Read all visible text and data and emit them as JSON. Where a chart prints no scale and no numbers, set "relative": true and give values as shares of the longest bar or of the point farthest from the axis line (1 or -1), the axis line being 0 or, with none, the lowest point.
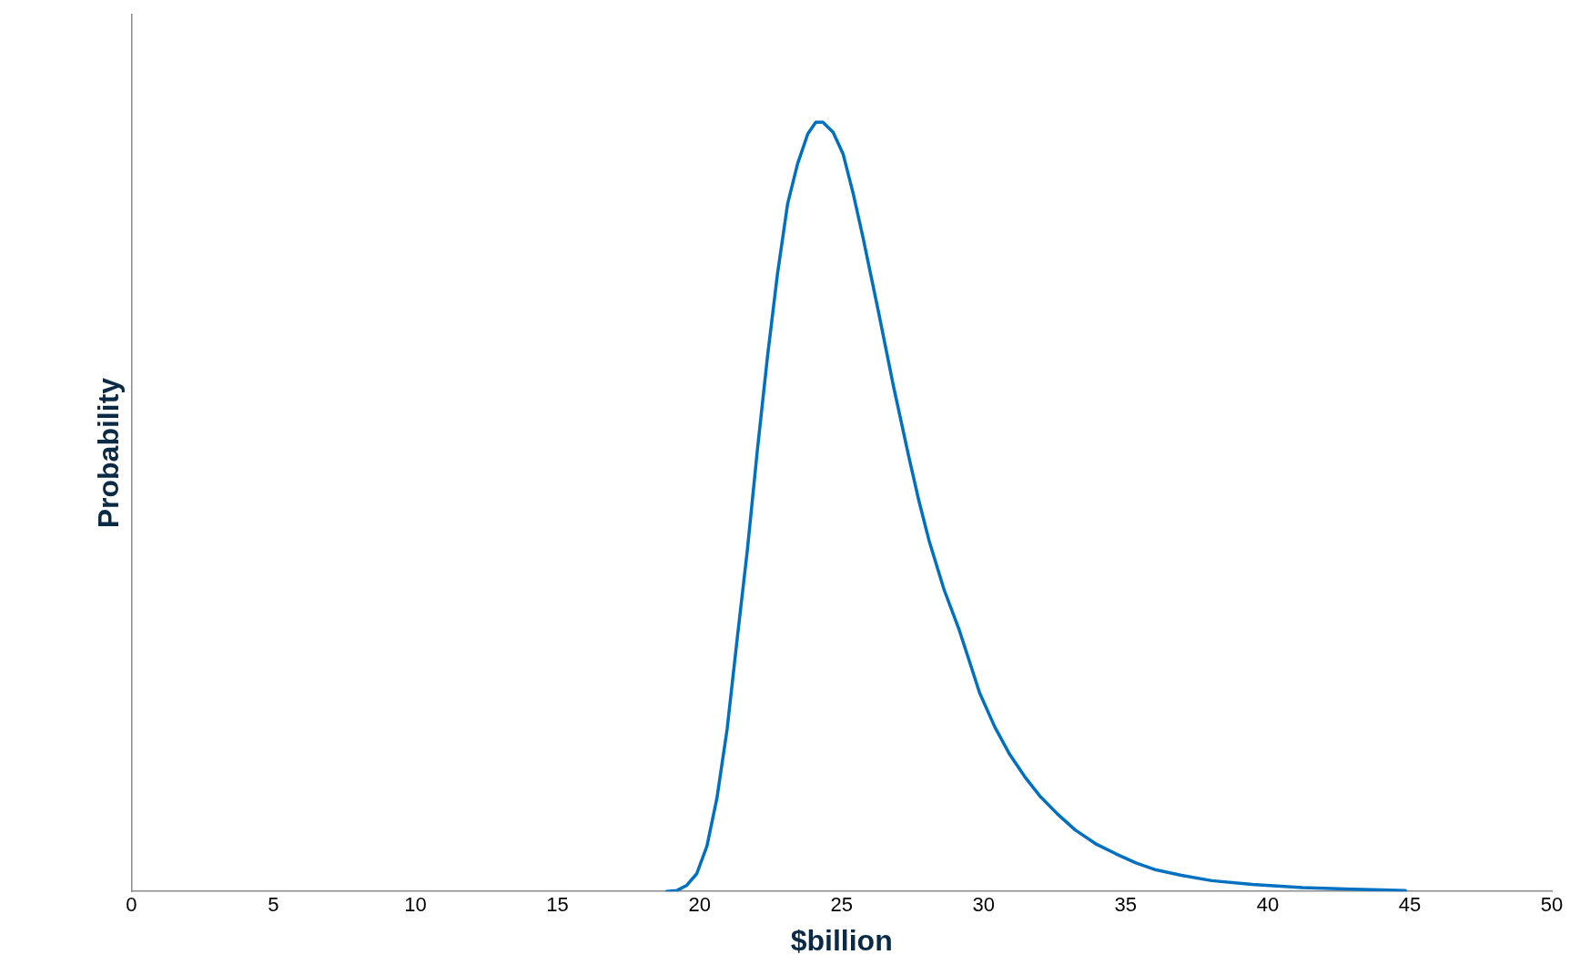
{
  "chart_data": {
    "type": "line",
    "xlabel": "$billion",
    "ylabel": "Probability",
    "relative": true,
    "xlim": [
      0,
      50
    ],
    "xticks": [
      0,
      5,
      10,
      15,
      20,
      25,
      30,
      35,
      40,
      45,
      50
    ],
    "grid": false,
    "legend": false,
    "marker": "none",
    "line_style": "solid",
    "series": [
      {
        "color": "#0070c0",
        "x": [
          18.84,
          19.19,
          19.55,
          19.9,
          20.26,
          20.61,
          20.97,
          21.32,
          21.68,
          22.03,
          22.39,
          22.74,
          23.1,
          23.45,
          23.81,
          24.09,
          24.34,
          24.7,
          25.05,
          25.41,
          25.76,
          26.3,
          26.83,
          27.36,
          27.72,
          28.08,
          28.61,
          29.14,
          29.5,
          29.86,
          30.39,
          30.92,
          31.45,
          31.98,
          32.59,
          33.22,
          33.94,
          34.65,
          35.36,
          36.07,
          36.96,
          38.03,
          39.45,
          41.22,
          43.0,
          44.85
        ],
        "values": [
          0,
          0.001,
          0.008,
          0.023,
          0.059,
          0.121,
          0.211,
          0.327,
          0.443,
          0.572,
          0.695,
          0.802,
          0.894,
          0.946,
          0.985,
          1,
          1,
          0.987,
          0.959,
          0.907,
          0.849,
          0.753,
          0.656,
          0.566,
          0.508,
          0.456,
          0.392,
          0.34,
          0.299,
          0.258,
          0.214,
          0.178,
          0.149,
          0.124,
          0.101,
          0.08,
          0.062,
          0.049,
          0.037,
          0.028,
          0.021,
          0.014,
          0.009,
          0.005,
          0.003,
          0.001
        ]
      }
    ]
  }
}
